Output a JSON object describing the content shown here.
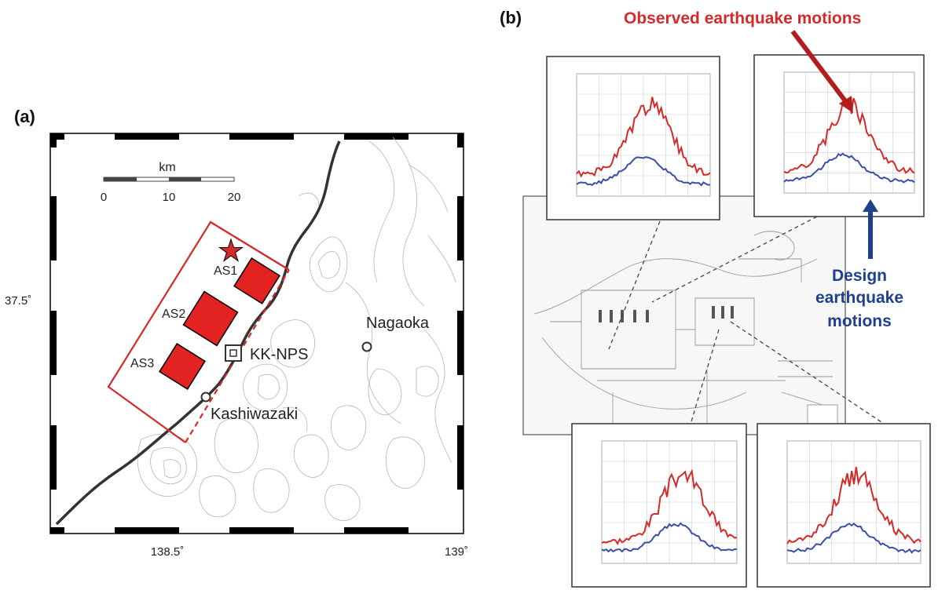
{
  "panel_a": {
    "label": "(a)",
    "scale_unit": "km",
    "scale_ticks": [
      "0",
      "10",
      "20"
    ],
    "lat_label": "37.5˚",
    "lon_labels": [
      "138.5˚",
      "139˚"
    ],
    "asperities": [
      "AS1",
      "AS2",
      "AS3"
    ],
    "places": {
      "plant": "KK-NPS",
      "city1": "Nagaoka",
      "city2": "Kashiwazaki"
    }
  },
  "panel_b": {
    "label": "(b)",
    "observed_label": "Observed earthquake motions",
    "design_label_lines": [
      "Design",
      "earthquake",
      "motions"
    ],
    "colors": {
      "observed": "#d42a2a",
      "design": "#3a4fa8"
    }
  }
}
